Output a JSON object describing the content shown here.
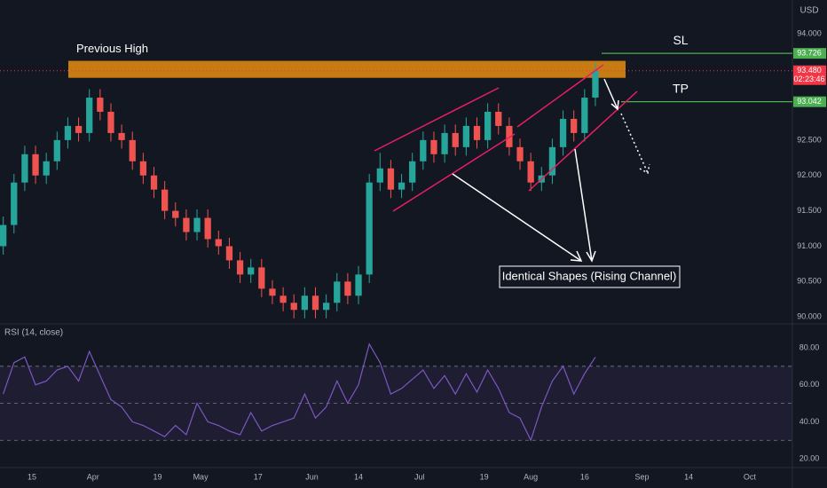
{
  "chart_data": [
    {
      "type": "candlestick",
      "currency": "USD",
      "x": [
        6,
        9,
        12,
        15,
        18,
        21,
        24,
        27,
        30,
        33,
        36,
        39,
        42,
        45,
        48,
        51,
        54,
        57,
        60,
        63,
        66,
        69,
        72,
        75,
        78,
        81,
        84,
        87,
        90,
        93,
        96,
        99,
        102,
        105,
        108,
        111,
        114,
        117,
        120,
        123,
        126,
        129,
        132,
        135,
        138,
        141,
        144,
        147,
        150,
        153,
        156,
        159,
        162,
        165,
        168,
        171
      ],
      "open": [
        91.0,
        91.3,
        91.9,
        92.3,
        92.0,
        92.2,
        92.5,
        92.7,
        92.6,
        93.1,
        92.9,
        92.6,
        92.5,
        92.2,
        92.0,
        91.8,
        91.5,
        91.4,
        91.2,
        91.4,
        91.1,
        91.0,
        90.8,
        90.6,
        90.7,
        90.4,
        90.3,
        90.2,
        90.1,
        90.3,
        90.1,
        90.2,
        90.5,
        90.3,
        90.6,
        91.9,
        92.1,
        91.8,
        91.9,
        92.2,
        92.5,
        92.3,
        92.6,
        92.4,
        92.7,
        92.5,
        92.9,
        92.7,
        92.4,
        92.2,
        91.9,
        92.0,
        92.4,
        92.8,
        92.6,
        93.1
      ],
      "high": [
        91.42,
        92.02,
        92.42,
        92.42,
        92.32,
        92.62,
        92.82,
        92.82,
        93.22,
        93.22,
        93.02,
        92.72,
        92.62,
        92.32,
        92.12,
        91.92,
        91.62,
        91.52,
        91.52,
        91.52,
        91.22,
        91.12,
        90.92,
        90.82,
        90.82,
        90.52,
        90.42,
        90.32,
        90.42,
        90.42,
        90.32,
        90.62,
        90.62,
        90.72,
        92.02,
        92.32,
        92.22,
        92.02,
        92.32,
        92.62,
        92.62,
        92.72,
        92.72,
        92.82,
        92.82,
        93.02,
        93.02,
        92.82,
        92.52,
        92.32,
        92.12,
        92.52,
        92.92,
        92.92,
        93.22,
        93.6
      ],
      "low": [
        90.88,
        91.18,
        91.78,
        91.88,
        91.88,
        92.08,
        92.38,
        92.48,
        92.48,
        92.78,
        92.48,
        92.38,
        92.08,
        91.88,
        91.68,
        91.38,
        91.28,
        91.08,
        91.08,
        90.98,
        90.88,
        90.68,
        90.48,
        90.48,
        90.28,
        90.18,
        90.08,
        89.98,
        89.98,
        89.98,
        89.98,
        90.08,
        90.18,
        90.18,
        90.48,
        91.78,
        91.68,
        91.68,
        91.78,
        92.08,
        92.18,
        92.18,
        92.28,
        92.28,
        92.38,
        92.38,
        92.58,
        92.28,
        92.08,
        91.78,
        91.78,
        91.88,
        92.28,
        92.48,
        92.48,
        92.98
      ],
      "close": [
        91.3,
        91.9,
        92.3,
        92.0,
        92.2,
        92.5,
        92.7,
        92.6,
        93.1,
        92.9,
        92.6,
        92.5,
        92.2,
        92.0,
        91.8,
        91.5,
        91.4,
        91.2,
        91.4,
        91.1,
        91.0,
        90.8,
        90.6,
        90.7,
        90.4,
        90.3,
        90.2,
        90.1,
        90.3,
        90.1,
        90.2,
        90.5,
        90.3,
        90.6,
        91.9,
        92.1,
        91.8,
        91.9,
        92.2,
        92.5,
        92.3,
        92.6,
        92.4,
        92.7,
        92.5,
        92.9,
        92.7,
        92.4,
        92.2,
        91.9,
        92.0,
        92.4,
        92.8,
        92.6,
        93.1,
        93.48
      ],
      "up_color": "#26a69a",
      "down_color": "#ef5350",
      "xlim": [
        5.1,
        225.9
      ],
      "ylim": [
        89.94,
        94.48
      ],
      "yticks": [
        {
          "value": 94,
          "label": "94.000"
        },
        {
          "value": 92.5,
          "label": "92.500"
        },
        {
          "value": 92,
          "label": "92.000"
        },
        {
          "value": 91.5,
          "label": "91.500"
        },
        {
          "value": 91,
          "label": "91.000"
        },
        {
          "value": 90.5,
          "label": "90.500"
        },
        {
          "value": 90,
          "label": "90.000"
        }
      ],
      "zone": {
        "label": "Previous High",
        "from": 93.38,
        "to": 93.62,
        "color": "#c67c12"
      },
      "levels": [
        {
          "name": "SL",
          "value": 93.726,
          "color": "#4caf50"
        },
        {
          "name": "TP",
          "value": 93.042,
          "color": "#4caf50"
        }
      ],
      "price_labels": [
        {
          "value": 93.726,
          "label": "93.726",
          "color": "#4caf50"
        },
        {
          "value": 93.48,
          "label": "93.480",
          "color": "#f23645",
          "countdown": "02:23:46"
        },
        {
          "value": 93.042,
          "label": "93.042",
          "color": "#4caf50"
        }
      ],
      "annotation": "Identical Shapes (Rising Channel)"
    },
    {
      "type": "line",
      "title": "RSI (14, close)",
      "color": "#7e57c2",
      "x": [
        6,
        9,
        12,
        15,
        18,
        21,
        24,
        27,
        30,
        33,
        36,
        39,
        42,
        45,
        48,
        51,
        54,
        57,
        60,
        63,
        66,
        69,
        72,
        75,
        78,
        81,
        84,
        87,
        90,
        93,
        96,
        99,
        102,
        105,
        108,
        111,
        114,
        117,
        120,
        123,
        126,
        129,
        132,
        135,
        138,
        141,
        144,
        147,
        150,
        153,
        156,
        159,
        162,
        165,
        168,
        171
      ],
      "values": [
        55,
        72,
        75,
        60,
        62,
        68,
        70,
        62,
        78,
        65,
        52,
        48,
        40,
        38,
        35,
        32,
        38,
        33,
        50,
        40,
        38,
        35,
        33,
        45,
        35,
        38,
        40,
        42,
        55,
        42,
        48,
        62,
        50,
        60,
        82,
        72,
        55,
        58,
        63,
        68,
        58,
        65,
        55,
        66,
        56,
        68,
        58,
        45,
        42,
        30,
        48,
        62,
        70,
        55,
        66,
        75
      ],
      "levels": [
        70,
        50,
        30
      ],
      "xlim": [
        5.1,
        225.9
      ],
      "ylim": [
        16.2,
        91.5
      ],
      "yticks": [
        {
          "value": 80,
          "label": "80.00"
        },
        {
          "value": 60,
          "label": "60.00"
        },
        {
          "value": 40,
          "label": "40.00"
        },
        {
          "value": 20,
          "label": "20.00"
        }
      ],
      "xticks": [
        {
          "value": 14,
          "label": "15"
        },
        {
          "value": 31,
          "label": "Apr"
        },
        {
          "value": 49,
          "label": "19"
        },
        {
          "value": 61,
          "label": "May"
        },
        {
          "value": 77,
          "label": "17"
        },
        {
          "value": 92,
          "label": "Jun"
        },
        {
          "value": 105,
          "label": "14"
        },
        {
          "value": 122,
          "label": "Jul"
        },
        {
          "value": 140,
          "label": "19"
        },
        {
          "value": 153,
          "label": "Aug"
        },
        {
          "value": 168,
          "label": "16"
        },
        {
          "value": 184,
          "label": "Sep"
        },
        {
          "value": 197,
          "label": "14"
        },
        {
          "value": 214,
          "label": "Oct"
        }
      ]
    }
  ]
}
